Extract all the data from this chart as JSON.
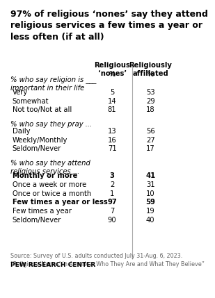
{
  "title": "97% of religious ‘nones’ say they attend\nreligious services a few times a year or\nless often (if at all)",
  "col1_header": "Religious\n‘nones’",
  "col2_header": "Religiously\naffiliated",
  "pct_label": "%",
  "sections": [
    {
      "header": "% who say religion is ___\nimportant in their life",
      "rows": [
        {
          "label": "Very",
          "v1": "5",
          "v2": "53",
          "bold": false
        },
        {
          "label": "Somewhat",
          "v1": "14",
          "v2": "29",
          "bold": false
        },
        {
          "label": "Not too/Not at all",
          "v1": "81",
          "v2": "18",
          "bold": false
        }
      ]
    },
    {
      "header": "% who say they pray ...",
      "rows": [
        {
          "label": "Daily",
          "v1": "13",
          "v2": "56",
          "bold": false
        },
        {
          "label": "Weekly/Monthly",
          "v1": "16",
          "v2": "27",
          "bold": false
        },
        {
          "label": "Seldom/Never",
          "v1": "71",
          "v2": "17",
          "bold": false
        }
      ]
    },
    {
      "header": "% who say they attend\nreligious services ...",
      "rows": [
        {
          "label": "Monthly or more",
          "v1": "3",
          "v2": "41",
          "bold": true
        },
        {
          "label": "Once a week or more",
          "v1": "2",
          "v2": "31",
          "bold": false
        },
        {
          "label": "Once or twice a month",
          "v1": "1",
          "v2": "10",
          "bold": false
        },
        {
          "label": "Few times a year or less",
          "v1": "97",
          "v2": "59",
          "bold": true
        },
        {
          "label": "Few times a year",
          "v1": "7",
          "v2": "19",
          "bold": false
        },
        {
          "label": "Seldom/Never",
          "v1": "90",
          "v2": "40",
          "bold": false
        }
      ]
    }
  ],
  "source_text": "Source: Survey of U.S. adults conducted July 31-Aug. 6, 2023.\n“Religious ‘Nones’ in America: Who They Are and What They Believe”",
  "footer": "PEW RESEARCH CENTER",
  "bg_color": "#ffffff",
  "text_color": "#000000",
  "col_divider_color": "#aaaaaa",
  "source_color": "#666666"
}
